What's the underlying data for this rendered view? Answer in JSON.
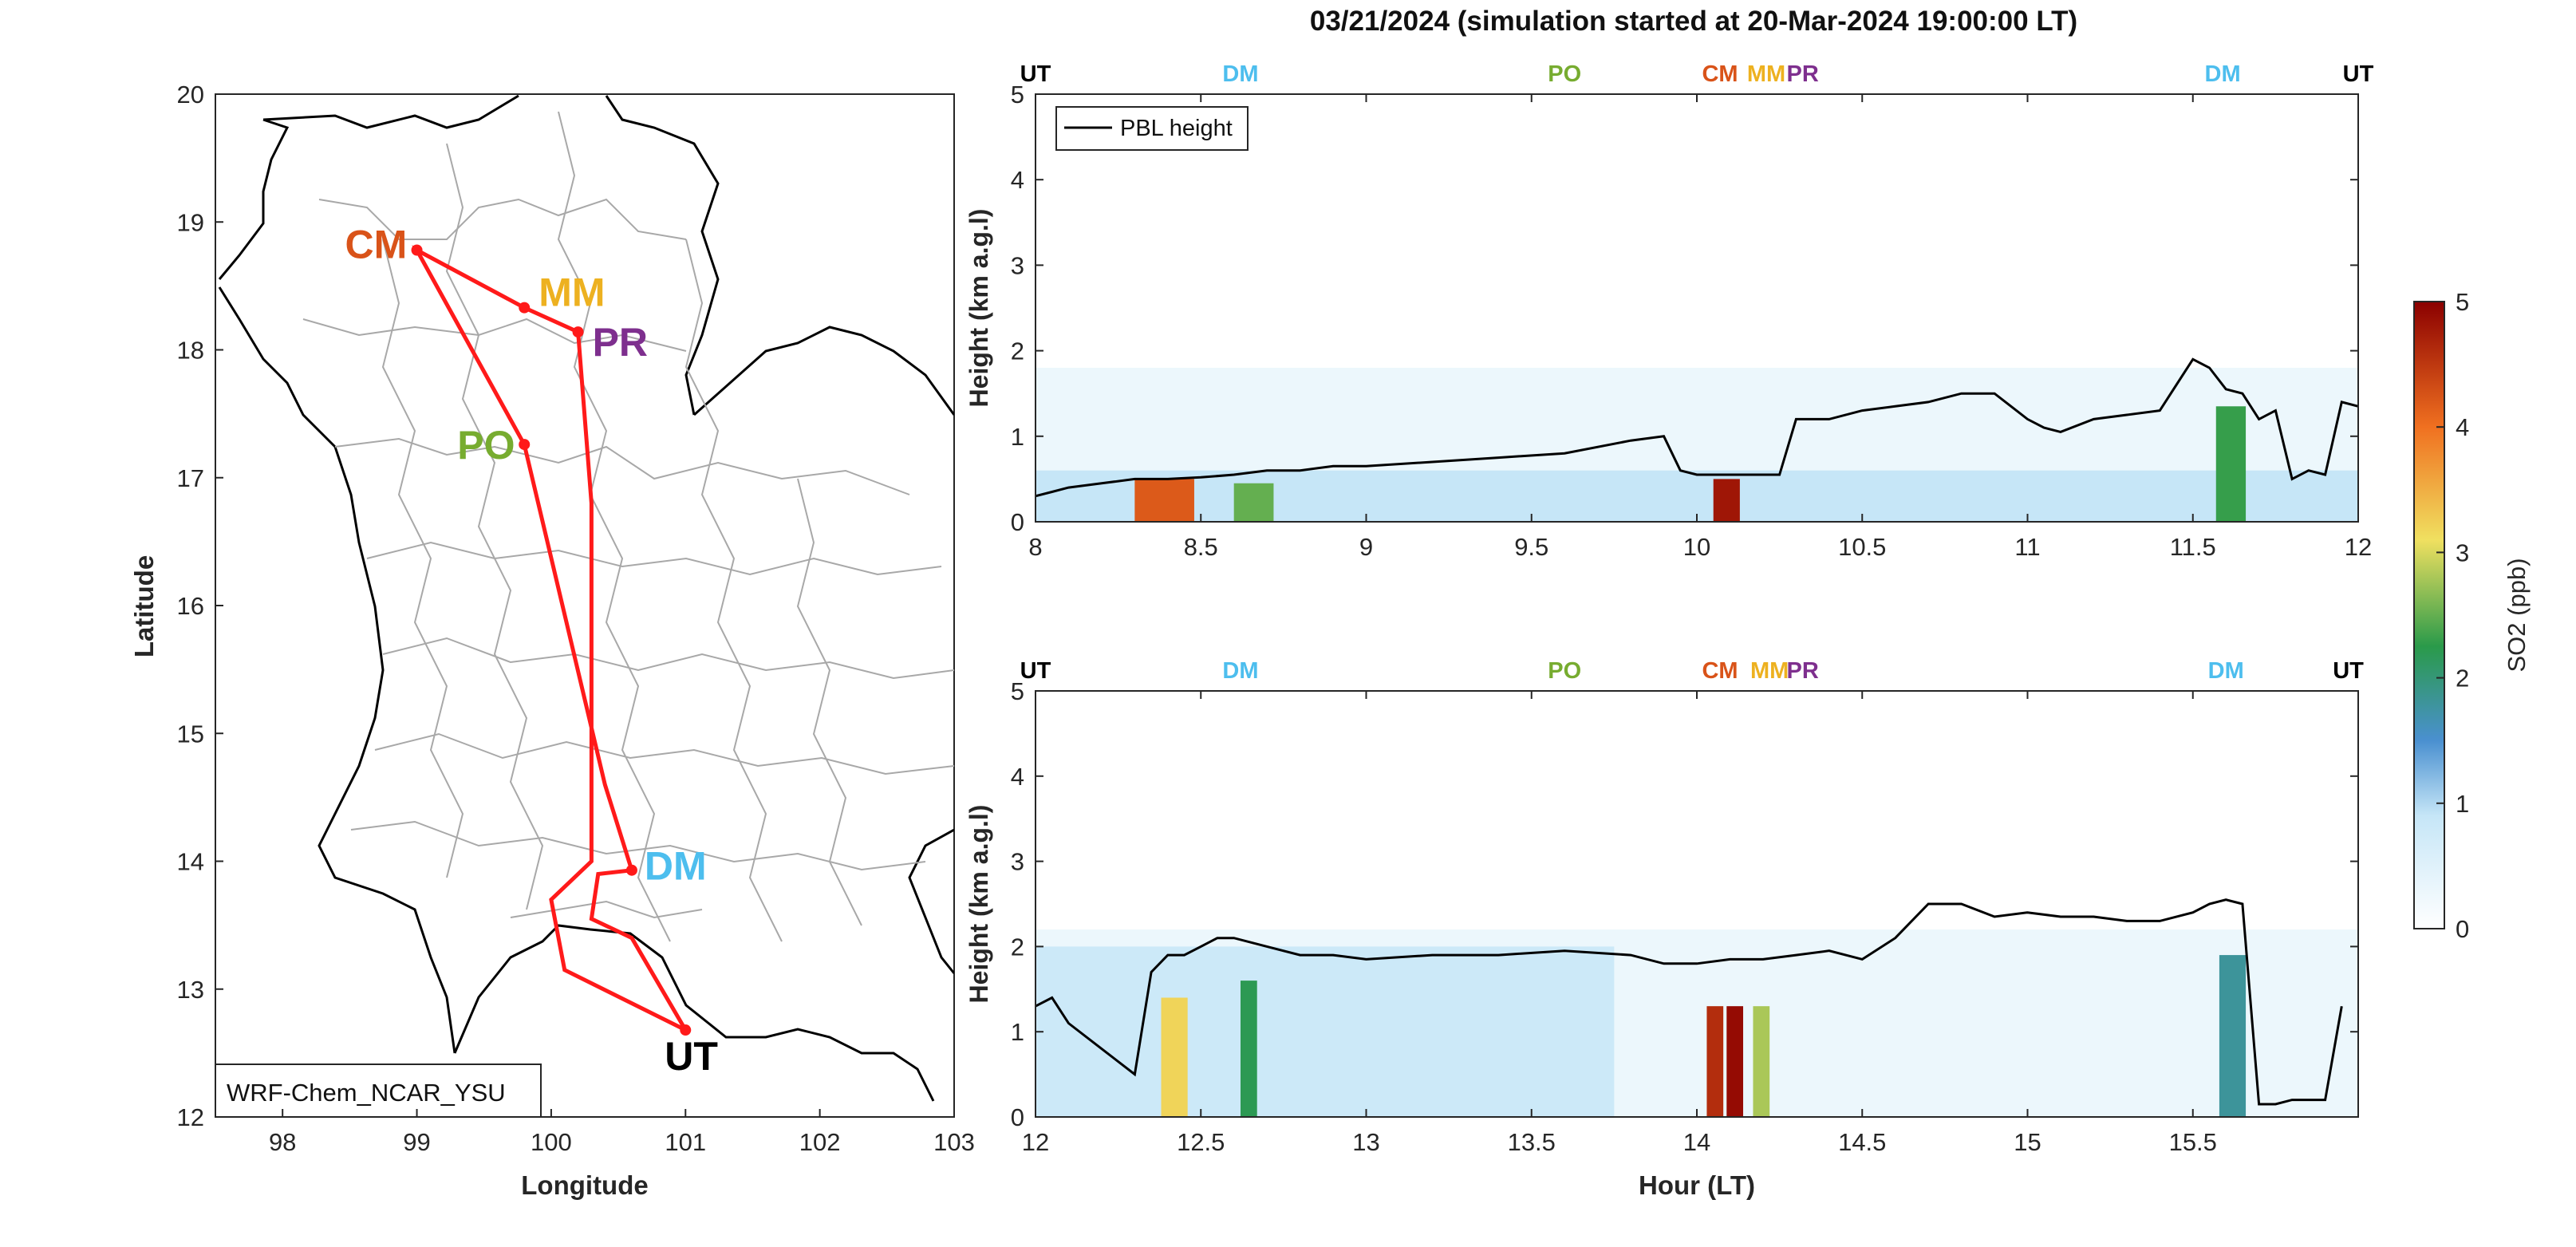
{
  "title": "03/21/2024 (simulation started at 20-Mar-2024 19:00:00 LT)",
  "colors": {
    "track": "#ff1a1a",
    "pbl": "#000000",
    "sites": {
      "UT": "#000000",
      "DM": "#4dbeee",
      "PO": "#77ac30",
      "CM": "#d95319",
      "MM": "#edb120",
      "PR": "#7e2f8e"
    },
    "colorbar": [
      "#ffffff",
      "#c6e6f7",
      "#4a90d0",
      "#2a9a4a",
      "#f0e060",
      "#f07020",
      "#8b0000"
    ]
  },
  "map": {
    "xlabel": "Longitude",
    "ylabel": "Latitude",
    "xlim": [
      97.5,
      103
    ],
    "ylim": [
      12,
      20
    ],
    "xticks": [
      98,
      99,
      100,
      101,
      102,
      103
    ],
    "yticks": [
      12,
      13,
      14,
      15,
      16,
      17,
      18,
      19,
      20
    ],
    "model_label": "WRF-Chem_NCAR_YSU",
    "sites": [
      {
        "name": "CM",
        "lon": 99.0,
        "lat": 18.78
      },
      {
        "name": "MM",
        "lon": 99.8,
        "lat": 18.33
      },
      {
        "name": "PR",
        "lon": 100.2,
        "lat": 18.14
      },
      {
        "name": "PO",
        "lon": 99.8,
        "lat": 17.26
      },
      {
        "name": "DM",
        "lon": 100.6,
        "lat": 13.93
      },
      {
        "name": "UT",
        "lon": 101.0,
        "lat": 12.68
      }
    ],
    "track": [
      [
        101.0,
        12.68
      ],
      [
        100.6,
        13.4
      ],
      [
        100.3,
        13.55
      ],
      [
        100.35,
        13.9
      ],
      [
        100.6,
        13.93
      ],
      [
        100.4,
        14.6
      ],
      [
        99.8,
        17.26
      ],
      [
        99.0,
        18.78
      ],
      [
        99.8,
        18.33
      ],
      [
        100.2,
        18.14
      ],
      [
        100.3,
        16.8
      ],
      [
        100.3,
        15.0
      ],
      [
        100.3,
        14.0
      ],
      [
        100.0,
        13.7
      ],
      [
        100.1,
        13.15
      ],
      [
        101.0,
        12.68
      ]
    ]
  },
  "chart_data": [
    {
      "type": "heatmap",
      "panel": "top",
      "xlabel": "",
      "ylabel": "Height (km a.g.l)",
      "xlim": [
        8,
        12
      ],
      "ylim": [
        0,
        5
      ],
      "xticks": [
        "8",
        "8.5",
        "9",
        "9.5",
        "10",
        "10.5",
        "11",
        "11.5",
        "12"
      ],
      "yticks": [
        "0",
        "1",
        "2",
        "3",
        "4",
        "5"
      ],
      "legend": "PBL height",
      "site_markers": [
        {
          "label": "UT",
          "x": 8.0
        },
        {
          "label": "DM",
          "x": 8.62
        },
        {
          "label": "PO",
          "x": 9.6
        },
        {
          "label": "CM",
          "x": 10.07
        },
        {
          "label": "MM",
          "x": 10.21
        },
        {
          "label": "PR",
          "x": 10.32
        },
        {
          "label": "DM",
          "x": 11.59
        },
        {
          "label": "UT",
          "x": 12.0
        }
      ],
      "pbl_height": {
        "x": [
          8.0,
          8.05,
          8.1,
          8.2,
          8.3,
          8.4,
          8.5,
          8.6,
          8.7,
          8.8,
          8.9,
          9.0,
          9.2,
          9.4,
          9.6,
          9.8,
          9.9,
          9.95,
          10.0,
          10.1,
          10.2,
          10.25,
          10.3,
          10.4,
          10.5,
          10.6,
          10.7,
          10.8,
          10.9,
          11.0,
          11.05,
          11.1,
          11.2,
          11.3,
          11.4,
          11.45,
          11.5,
          11.55,
          11.6,
          11.65,
          11.7,
          11.75,
          11.8,
          11.85,
          11.9,
          11.95,
          12.0
        ],
        "y": [
          0.3,
          0.35,
          0.4,
          0.45,
          0.5,
          0.5,
          0.52,
          0.55,
          0.6,
          0.6,
          0.65,
          0.65,
          0.7,
          0.75,
          0.8,
          0.95,
          1.0,
          0.6,
          0.55,
          0.55,
          0.55,
          0.55,
          1.2,
          1.2,
          1.3,
          1.35,
          1.4,
          1.5,
          1.5,
          1.2,
          1.1,
          1.05,
          1.2,
          1.25,
          1.3,
          1.6,
          1.9,
          1.8,
          1.55,
          1.5,
          1.2,
          1.3,
          0.5,
          0.6,
          0.55,
          1.4,
          1.35
        ]
      },
      "so2_regions": [
        {
          "x": [
            8.0,
            12.0
          ],
          "y": [
            0,
            1.8
          ],
          "ppb": 0.3
        },
        {
          "x": [
            8.0,
            12.0
          ],
          "y": [
            0,
            0.6
          ],
          "ppb": 0.9
        },
        {
          "x": [
            8.3,
            8.48
          ],
          "y": [
            0,
            0.5
          ],
          "ppb": 4.2
        },
        {
          "x": [
            8.6,
            8.72
          ],
          "y": [
            0,
            0.45
          ],
          "ppb": 2.5
        },
        {
          "x": [
            10.05,
            10.13
          ],
          "y": [
            0,
            0.5
          ],
          "ppb": 4.8
        },
        {
          "x": [
            11.57,
            11.66
          ],
          "y": [
            0,
            1.35
          ],
          "ppb": 2.3
        }
      ]
    },
    {
      "type": "heatmap",
      "panel": "bottom",
      "xlabel": "Hour (LT)",
      "ylabel": "Height (km a.g.l)",
      "xlim": [
        12,
        16
      ],
      "ylim": [
        0,
        5
      ],
      "xticks": [
        "12",
        "12.5",
        "13",
        "13.5",
        "14",
        "14.5",
        "15",
        "15.5"
      ],
      "yticks": [
        "0",
        "1",
        "2",
        "3",
        "4",
        "5"
      ],
      "site_markers": [
        {
          "label": "UT",
          "x": 12.0
        },
        {
          "label": "DM",
          "x": 12.62
        },
        {
          "label": "PO",
          "x": 13.6
        },
        {
          "label": "CM",
          "x": 14.07
        },
        {
          "label": "MM",
          "x": 14.22
        },
        {
          "label": "PR",
          "x": 14.32
        },
        {
          "label": "DM",
          "x": 15.6
        },
        {
          "label": "UT",
          "x": 15.97
        }
      ],
      "pbl_height": {
        "x": [
          12.0,
          12.05,
          12.1,
          12.2,
          12.3,
          12.35,
          12.4,
          12.45,
          12.5,
          12.55,
          12.6,
          12.7,
          12.8,
          12.9,
          13.0,
          13.2,
          13.4,
          13.6,
          13.8,
          13.9,
          14.0,
          14.1,
          14.2,
          14.3,
          14.4,
          14.5,
          14.6,
          14.7,
          14.8,
          14.9,
          15.0,
          15.1,
          15.2,
          15.3,
          15.4,
          15.5,
          15.55,
          15.6,
          15.65,
          15.7,
          15.75,
          15.8,
          15.9,
          15.95
        ],
        "y": [
          1.3,
          1.4,
          1.1,
          0.8,
          0.5,
          1.7,
          1.9,
          1.9,
          2.0,
          2.1,
          2.1,
          2.0,
          1.9,
          1.9,
          1.85,
          1.9,
          1.9,
          1.95,
          1.9,
          1.8,
          1.8,
          1.85,
          1.85,
          1.9,
          1.95,
          1.85,
          2.1,
          2.5,
          2.5,
          2.35,
          2.4,
          2.35,
          2.35,
          2.3,
          2.3,
          2.4,
          2.5,
          2.55,
          2.5,
          0.15,
          0.15,
          0.2,
          0.2,
          1.3
        ]
      },
      "so2_regions": [
        {
          "x": [
            12.0,
            16.0
          ],
          "y": [
            0,
            2.2
          ],
          "ppb": 0.3
        },
        {
          "x": [
            12.0,
            13.75
          ],
          "y": [
            0,
            2.0
          ],
          "ppb": 0.8
        },
        {
          "x": [
            12.38,
            12.46
          ],
          "y": [
            0,
            1.4
          ],
          "ppb": 3.2
        },
        {
          "x": [
            12.62,
            12.67
          ],
          "y": [
            0,
            1.6
          ],
          "ppb": 2.2
        },
        {
          "x": [
            14.03,
            14.08
          ],
          "y": [
            0,
            1.3
          ],
          "ppb": 4.6
        },
        {
          "x": [
            14.09,
            14.14
          ],
          "y": [
            0,
            1.3
          ],
          "ppb": 4.9
        },
        {
          "x": [
            14.17,
            14.22
          ],
          "y": [
            0,
            1.3
          ],
          "ppb": 2.8
        },
        {
          "x": [
            15.58,
            15.66
          ],
          "y": [
            0,
            1.9
          ],
          "ppb": 1.8
        }
      ]
    }
  ],
  "colorbar": {
    "label": "SO2 (ppb)",
    "range": [
      0,
      5
    ],
    "ticks": [
      "0",
      "1",
      "2",
      "3",
      "4",
      "5"
    ]
  }
}
